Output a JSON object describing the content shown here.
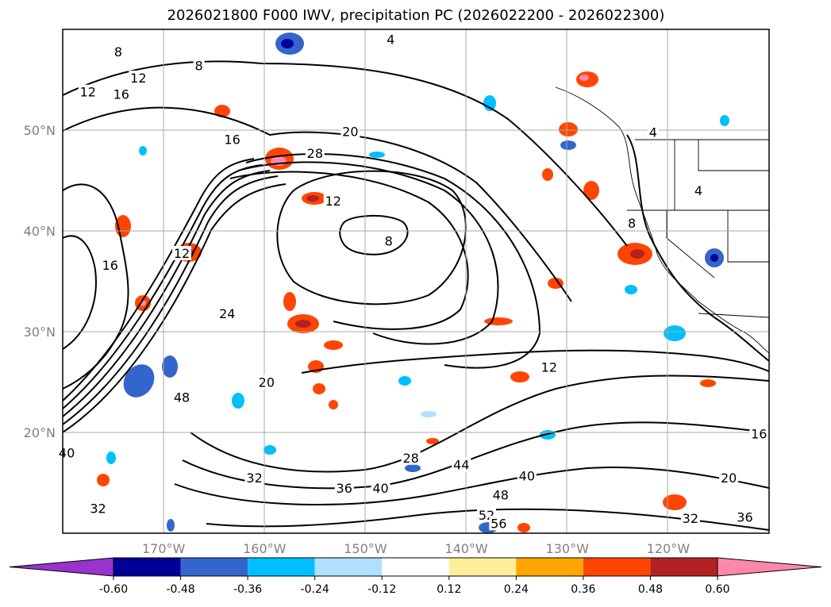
{
  "chart_data": {
    "type": "contour-map",
    "title": "2026021800 F000 IWV, precipitation PC (2026022200 - 2026022300)",
    "lon_range": [
      -180,
      -110
    ],
    "lat_range": [
      10,
      60
    ],
    "x_ticks": [
      {
        "lon": -170,
        "label": "170°W"
      },
      {
        "lon": -160,
        "label": "160°W"
      },
      {
        "lon": -150,
        "label": "150°W"
      },
      {
        "lon": -140,
        "label": "140°W"
      },
      {
        "lon": -130,
        "label": "130°W"
      },
      {
        "lon": -120,
        "label": "120°W"
      }
    ],
    "y_ticks": [
      {
        "lat": 20,
        "label": "20°N"
      },
      {
        "lat": 30,
        "label": "30°N"
      },
      {
        "lat": 40,
        "label": "40°N"
      },
      {
        "lat": 50,
        "label": "50°N"
      }
    ],
    "grid": true,
    "colorbar": {
      "orientation": "horizontal",
      "extend": "both",
      "bounds": [
        -0.72,
        -0.6,
        -0.48,
        -0.36,
        -0.24,
        -0.12,
        0.12,
        0.24,
        0.36,
        0.48,
        0.6,
        0.72
      ],
      "colors": [
        "#9933cc",
        "#000099",
        "#3366cc",
        "#00bfff",
        "#b0e0ff",
        "#ffffff",
        "#ffee99",
        "#ffa500",
        "#ff4500",
        "#b22222",
        "#ff88aa"
      ],
      "tick_labels": [
        "-0.60",
        "-0.48",
        "-0.36",
        "-0.24",
        "-0.12",
        "0.12",
        "0.24",
        "0.36",
        "0.48",
        "0.60"
      ]
    },
    "contour_labels": [
      {
        "text": "4",
        "lon": -147.5,
        "lat": 59.0
      },
      {
        "text": "8",
        "lon": -174.5,
        "lat": 57.8
      },
      {
        "text": "12",
        "lon": -177.5,
        "lat": 53.8
      },
      {
        "text": "12",
        "lon": -172.5,
        "lat": 55.2
      },
      {
        "text": "16",
        "lon": -174.2,
        "lat": 53.6
      },
      {
        "text": "8",
        "lon": -166.5,
        "lat": 56.4
      },
      {
        "text": "20",
        "lon": -151.5,
        "lat": 49.9
      },
      {
        "text": "16",
        "lon": -163.2,
        "lat": 49.1
      },
      {
        "text": "28",
        "lon": -155.0,
        "lat": 47.7
      },
      {
        "text": "12",
        "lon": -153.2,
        "lat": 43.0
      },
      {
        "text": "8",
        "lon": -147.7,
        "lat": 39.0
      },
      {
        "text": "12",
        "lon": -168.2,
        "lat": 37.8
      },
      {
        "text": "16",
        "lon": -175.3,
        "lat": 36.6
      },
      {
        "text": "24",
        "lon": -163.7,
        "lat": 31.8
      },
      {
        "text": "20",
        "lon": -159.8,
        "lat": 25.0
      },
      {
        "text": "12",
        "lon": -131.8,
        "lat": 26.5
      },
      {
        "text": "48",
        "lon": -168.2,
        "lat": 23.5
      },
      {
        "text": "4",
        "lon": -121.5,
        "lat": 49.8
      },
      {
        "text": "8",
        "lon": -123.6,
        "lat": 40.8
      },
      {
        "text": "4",
        "lon": -117.0,
        "lat": 44.0
      },
      {
        "text": "28",
        "lon": -145.5,
        "lat": 17.5
      },
      {
        "text": "44",
        "lon": -140.5,
        "lat": 16.8
      },
      {
        "text": "32",
        "lon": -161.0,
        "lat": 15.5
      },
      {
        "text": "36",
        "lon": -152.1,
        "lat": 14.5
      },
      {
        "text": "40",
        "lon": -148.5,
        "lat": 14.5
      },
      {
        "text": "40",
        "lon": -179.6,
        "lat": 18.0
      },
      {
        "text": "40",
        "lon": -134.0,
        "lat": 15.7
      },
      {
        "text": "48",
        "lon": -136.6,
        "lat": 13.8
      },
      {
        "text": "52",
        "lon": -138.0,
        "lat": 11.8
      },
      {
        "text": "56",
        "lon": -136.8,
        "lat": 11.0
      },
      {
        "text": "32",
        "lon": -176.5,
        "lat": 12.5
      },
      {
        "text": "20",
        "lon": -114.0,
        "lat": 15.5
      },
      {
        "text": "16",
        "lon": -111.0,
        "lat": 19.9
      },
      {
        "text": "36",
        "lon": -112.4,
        "lat": 11.6
      },
      {
        "text": "32",
        "lon": -117.8,
        "lat": 11.5
      }
    ]
  }
}
